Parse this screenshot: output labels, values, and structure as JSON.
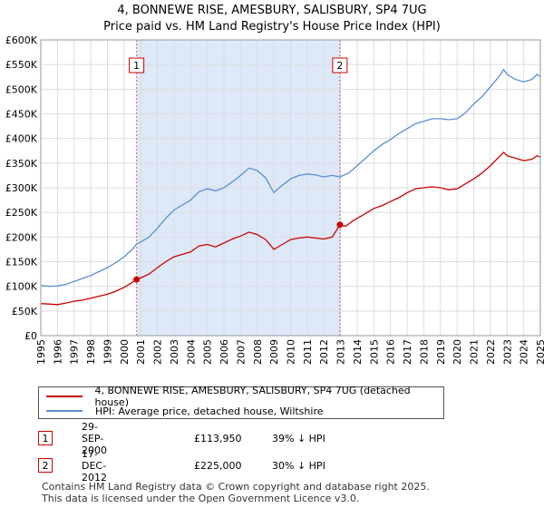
{
  "title_line1": "4, BONNEWE RISE, AMESBURY, SALISBURY, SP4 7UG",
  "title_line2": "Price paid vs. HM Land Registry's House Price Index (HPI)",
  "colors": {
    "property": "#cc0000",
    "hpi": "#5b8fd0",
    "shade": "#dde8f8",
    "marker_line": "#e06070",
    "grid": "#dddddd"
  },
  "chart_data": {
    "type": "line",
    "xlim": [
      1995,
      2025
    ],
    "ylim": [
      0,
      600000
    ],
    "x_ticks": [
      "1995",
      "1996",
      "1997",
      "1998",
      "1999",
      "2000",
      "2001",
      "2002",
      "2003",
      "2004",
      "2005",
      "2006",
      "2007",
      "2008",
      "2009",
      "2010",
      "2011",
      "2012",
      "2013",
      "2014",
      "2015",
      "2016",
      "2017",
      "2018",
      "2019",
      "2020",
      "2021",
      "2022",
      "2023",
      "2024",
      "2025"
    ],
    "y_ticks": [
      {
        "value": 0,
        "label": "£0"
      },
      {
        "value": 50000,
        "label": "£50K"
      },
      {
        "value": 100000,
        "label": "£100K"
      },
      {
        "value": 150000,
        "label": "£150K"
      },
      {
        "value": 200000,
        "label": "£200K"
      },
      {
        "value": 250000,
        "label": "£250K"
      },
      {
        "value": 300000,
        "label": "£300K"
      },
      {
        "value": 350000,
        "label": "£350K"
      },
      {
        "value": 400000,
        "label": "£400K"
      },
      {
        "value": 450000,
        "label": "£450K"
      },
      {
        "value": 500000,
        "label": "£500K"
      },
      {
        "value": 550000,
        "label": "£550K"
      },
      {
        "value": 600000,
        "label": "£600K"
      }
    ],
    "shaded_range": [
      2000.75,
      2012.96
    ],
    "series": [
      {
        "name": "4, BONNEWE RISE, AMESBURY, SALISBURY, SP4 7UG (detached house)",
        "color": "#cc0000",
        "points": [
          [
            1995,
            65000
          ],
          [
            1995.5,
            64000
          ],
          [
            1996,
            63000
          ],
          [
            1996.5,
            66000
          ],
          [
            1997,
            70000
          ],
          [
            1997.5,
            72000
          ],
          [
            1998,
            76000
          ],
          [
            1998.5,
            80000
          ],
          [
            1999,
            84000
          ],
          [
            1999.5,
            90000
          ],
          [
            2000,
            98000
          ],
          [
            2000.5,
            108000
          ],
          [
            2000.75,
            113950
          ],
          [
            2001,
            117000
          ],
          [
            2001.5,
            125000
          ],
          [
            2002,
            138000
          ],
          [
            2002.5,
            150000
          ],
          [
            2003,
            160000
          ],
          [
            2003.5,
            165000
          ],
          [
            2004,
            170000
          ],
          [
            2004.5,
            182000
          ],
          [
            2005,
            185000
          ],
          [
            2005.5,
            180000
          ],
          [
            2006,
            188000
          ],
          [
            2006.5,
            196000
          ],
          [
            2007,
            202000
          ],
          [
            2007.5,
            210000
          ],
          [
            2008,
            205000
          ],
          [
            2008.5,
            195000
          ],
          [
            2009,
            175000
          ],
          [
            2009.5,
            185000
          ],
          [
            2010,
            195000
          ],
          [
            2010.5,
            198000
          ],
          [
            2011,
            200000
          ],
          [
            2011.5,
            198000
          ],
          [
            2012,
            196000
          ],
          [
            2012.5,
            200000
          ],
          [
            2012.96,
            225000
          ],
          [
            2013.3,
            222000
          ],
          [
            2013.7,
            232000
          ],
          [
            2014,
            238000
          ],
          [
            2014.5,
            248000
          ],
          [
            2015,
            258000
          ],
          [
            2015.5,
            264000
          ],
          [
            2016,
            272000
          ],
          [
            2016.5,
            280000
          ],
          [
            2017,
            290000
          ],
          [
            2017.5,
            298000
          ],
          [
            2018,
            300000
          ],
          [
            2018.5,
            302000
          ],
          [
            2019,
            300000
          ],
          [
            2019.5,
            296000
          ],
          [
            2020,
            298000
          ],
          [
            2020.5,
            308000
          ],
          [
            2021,
            318000
          ],
          [
            2021.5,
            330000
          ],
          [
            2022,
            345000
          ],
          [
            2022.5,
            362000
          ],
          [
            2022.8,
            372000
          ],
          [
            2023,
            365000
          ],
          [
            2023.5,
            360000
          ],
          [
            2024,
            355000
          ],
          [
            2024.5,
            358000
          ],
          [
            2024.8,
            365000
          ],
          [
            2025,
            362000
          ]
        ]
      },
      {
        "name": "HPI: Average price, detached house, Wiltshire",
        "color": "#5b8fd0",
        "points": [
          [
            1995,
            102000
          ],
          [
            1995.5,
            100000
          ],
          [
            1996,
            101000
          ],
          [
            1996.5,
            104000
          ],
          [
            1997,
            110000
          ],
          [
            1997.5,
            116000
          ],
          [
            1998,
            122000
          ],
          [
            1998.5,
            130000
          ],
          [
            1999,
            138000
          ],
          [
            1999.5,
            148000
          ],
          [
            2000,
            160000
          ],
          [
            2000.5,
            175000
          ],
          [
            2000.75,
            186000
          ],
          [
            2001,
            190000
          ],
          [
            2001.5,
            200000
          ],
          [
            2002,
            218000
          ],
          [
            2002.5,
            238000
          ],
          [
            2003,
            255000
          ],
          [
            2003.5,
            265000
          ],
          [
            2004,
            275000
          ],
          [
            2004.5,
            292000
          ],
          [
            2005,
            298000
          ],
          [
            2005.5,
            294000
          ],
          [
            2006,
            300000
          ],
          [
            2006.5,
            312000
          ],
          [
            2007,
            325000
          ],
          [
            2007.5,
            340000
          ],
          [
            2008,
            335000
          ],
          [
            2008.5,
            320000
          ],
          [
            2009,
            290000
          ],
          [
            2009.5,
            305000
          ],
          [
            2010,
            318000
          ],
          [
            2010.5,
            325000
          ],
          [
            2011,
            328000
          ],
          [
            2011.5,
            326000
          ],
          [
            2012,
            322000
          ],
          [
            2012.5,
            325000
          ],
          [
            2012.96,
            322000
          ],
          [
            2013.5,
            330000
          ],
          [
            2014,
            345000
          ],
          [
            2014.5,
            360000
          ],
          [
            2015,
            375000
          ],
          [
            2015.5,
            388000
          ],
          [
            2016,
            398000
          ],
          [
            2016.5,
            410000
          ],
          [
            2017,
            420000
          ],
          [
            2017.5,
            430000
          ],
          [
            2018,
            435000
          ],
          [
            2018.5,
            440000
          ],
          [
            2019,
            440000
          ],
          [
            2019.5,
            438000
          ],
          [
            2020,
            440000
          ],
          [
            2020.5,
            452000
          ],
          [
            2021,
            470000
          ],
          [
            2021.5,
            485000
          ],
          [
            2022,
            505000
          ],
          [
            2022.5,
            525000
          ],
          [
            2022.8,
            540000
          ],
          [
            2023,
            530000
          ],
          [
            2023.5,
            520000
          ],
          [
            2024,
            515000
          ],
          [
            2024.5,
            520000
          ],
          [
            2024.8,
            530000
          ],
          [
            2025,
            525000
          ]
        ]
      }
    ],
    "sales": [
      {
        "label": "1",
        "year": 2000.75,
        "price": 113950
      },
      {
        "label": "2",
        "year": 2012.96,
        "price": 225000
      }
    ]
  },
  "legend": {
    "property_label": "4, BONNEWE RISE, AMESBURY, SALISBURY, SP4 7UG (detached house)",
    "hpi_label": "HPI: Average price, detached house, Wiltshire"
  },
  "sales_table": [
    {
      "num": "1",
      "date": "29-SEP-2000",
      "price": "£113,950",
      "hpi": "39% ↓ HPI"
    },
    {
      "num": "2",
      "date": "17-DEC-2012",
      "price": "£225,000",
      "hpi": "30% ↓ HPI"
    }
  ],
  "footer_line1": "Contains HM Land Registry data © Crown copyright and database right 2025.",
  "footer_line2": "This data is licensed under the Open Government Licence v3.0."
}
